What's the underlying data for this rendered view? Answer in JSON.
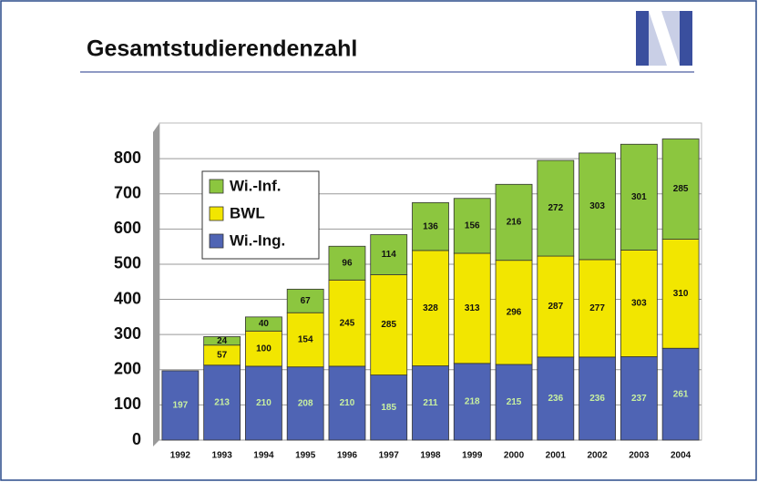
{
  "chart_data": {
    "type": "stacked_bar",
    "title": "Gesamtstudierendenzahl",
    "categories": [
      "1992",
      "1993",
      "1994",
      "1995",
      "1996",
      "1997",
      "1998",
      "1999",
      "2000",
      "2001",
      "2002",
      "2003",
      "2004"
    ],
    "series": [
      {
        "name": "Wi.-Ing.",
        "color": "#4f64b4",
        "values": [
          197,
          213,
          210,
          208,
          210,
          185,
          211,
          218,
          215,
          236,
          236,
          237,
          261
        ]
      },
      {
        "name": "BWL",
        "color": "#f2e600",
        "values": [
          null,
          57,
          100,
          154,
          245,
          285,
          328,
          313,
          296,
          287,
          277,
          303,
          310
        ]
      },
      {
        "name": "Wi.-Inf.",
        "color": "#8cc63f",
        "values": [
          null,
          24,
          40,
          67,
          96,
          114,
          136,
          156,
          216,
          272,
          303,
          301,
          285
        ]
      }
    ],
    "ylim": [
      0,
      900
    ],
    "yticks": [
      0,
      100,
      200,
      300,
      400,
      500,
      600,
      700,
      800
    ],
    "grid": true
  }
}
